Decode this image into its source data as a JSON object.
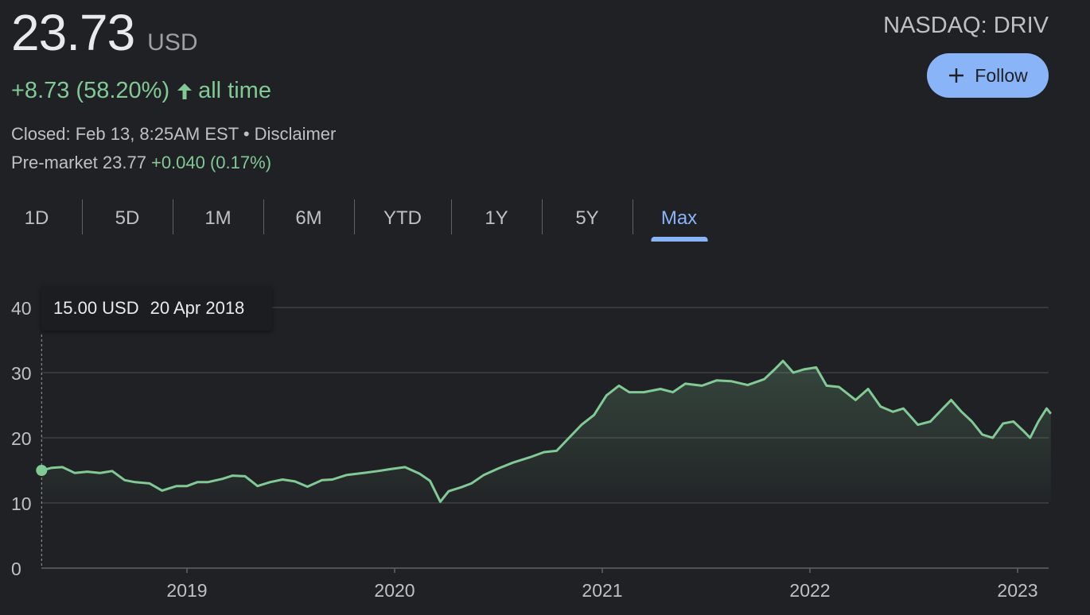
{
  "quote": {
    "price": "23.73",
    "currency": "USD",
    "change": "+8.73 (58.20%)",
    "period": "all time",
    "closed": "Closed: Feb 13, 8:25AM EST • Disclaimer",
    "premarket_label": "Pre-market 23.77",
    "premarket_change": "+0.040 (0.17%)",
    "exchange": "NASDAQ: DRIV"
  },
  "follow_label": "Follow",
  "tabs": [
    "1D",
    "5D",
    "1M",
    "6M",
    "YTD",
    "1Y",
    "5Y",
    "Max"
  ],
  "active_tab": "Max",
  "colors": {
    "line": "#81c995",
    "accent": "#8ab4f8",
    "background": "#202124"
  },
  "tooltip": {
    "price": "15.00 USD",
    "date": "20 Apr 2018"
  },
  "chart_data": {
    "type": "area",
    "x_unit": "year",
    "ylim": [
      0,
      40
    ],
    "xlim": [
      2018.0,
      2023.15
    ],
    "y_ticks": [
      0,
      10,
      20,
      30,
      40
    ],
    "x_ticks": [
      "2019",
      "2020",
      "2021",
      "2022",
      "2023"
    ],
    "grid": true,
    "points": [
      [
        2018.3,
        15.0
      ],
      [
        2018.35,
        15.4
      ],
      [
        2018.4,
        15.5
      ],
      [
        2018.46,
        14.6
      ],
      [
        2018.52,
        14.8
      ],
      [
        2018.58,
        14.6
      ],
      [
        2018.64,
        14.9
      ],
      [
        2018.7,
        13.5
      ],
      [
        2018.75,
        13.2
      ],
      [
        2018.82,
        13.0
      ],
      [
        2018.88,
        11.9
      ],
      [
        2018.95,
        12.6
      ],
      [
        2019.0,
        12.6
      ],
      [
        2019.05,
        13.2
      ],
      [
        2019.1,
        13.2
      ],
      [
        2019.17,
        13.7
      ],
      [
        2019.22,
        14.2
      ],
      [
        2019.28,
        14.1
      ],
      [
        2019.34,
        12.6
      ],
      [
        2019.4,
        13.2
      ],
      [
        2019.46,
        13.6
      ],
      [
        2019.52,
        13.3
      ],
      [
        2019.58,
        12.5
      ],
      [
        2019.65,
        13.5
      ],
      [
        2019.7,
        13.6
      ],
      [
        2019.77,
        14.3
      ],
      [
        2019.85,
        14.6
      ],
      [
        2019.92,
        14.9
      ],
      [
        2019.98,
        15.2
      ],
      [
        2020.05,
        15.5
      ],
      [
        2020.12,
        14.5
      ],
      [
        2020.17,
        13.4
      ],
      [
        2020.22,
        10.2
      ],
      [
        2020.26,
        11.8
      ],
      [
        2020.32,
        12.4
      ],
      [
        2020.37,
        13.0
      ],
      [
        2020.43,
        14.3
      ],
      [
        2020.5,
        15.3
      ],
      [
        2020.57,
        16.2
      ],
      [
        2020.65,
        17.0
      ],
      [
        2020.72,
        17.8
      ],
      [
        2020.78,
        18.0
      ],
      [
        2020.84,
        20.0
      ],
      [
        2020.9,
        22.0
      ],
      [
        2020.96,
        23.5
      ],
      [
        2021.02,
        26.5
      ],
      [
        2021.08,
        28.0
      ],
      [
        2021.13,
        27.0
      ],
      [
        2021.2,
        27.0
      ],
      [
        2021.28,
        27.5
      ],
      [
        2021.34,
        27.0
      ],
      [
        2021.4,
        28.3
      ],
      [
        2021.48,
        28.0
      ],
      [
        2021.55,
        28.8
      ],
      [
        2021.62,
        28.7
      ],
      [
        2021.7,
        28.1
      ],
      [
        2021.78,
        29.0
      ],
      [
        2021.83,
        30.5
      ],
      [
        2021.87,
        31.8
      ],
      [
        2021.92,
        30.0
      ],
      [
        2021.97,
        30.5
      ],
      [
        2022.03,
        30.8
      ],
      [
        2022.08,
        28.0
      ],
      [
        2022.14,
        27.8
      ],
      [
        2022.22,
        25.8
      ],
      [
        2022.28,
        27.5
      ],
      [
        2022.34,
        24.8
      ],
      [
        2022.4,
        24.0
      ],
      [
        2022.45,
        24.5
      ],
      [
        2022.52,
        22.0
      ],
      [
        2022.58,
        22.5
      ],
      [
        2022.64,
        24.5
      ],
      [
        2022.68,
        25.8
      ],
      [
        2022.73,
        24.0
      ],
      [
        2022.78,
        22.5
      ],
      [
        2022.83,
        20.5
      ],
      [
        2022.88,
        20.0
      ],
      [
        2022.93,
        22.2
      ],
      [
        2022.98,
        22.5
      ],
      [
        2023.03,
        21.0
      ],
      [
        2023.06,
        20.0
      ],
      [
        2023.1,
        22.5
      ],
      [
        2023.14,
        24.5
      ],
      [
        2023.16,
        23.7
      ]
    ]
  }
}
